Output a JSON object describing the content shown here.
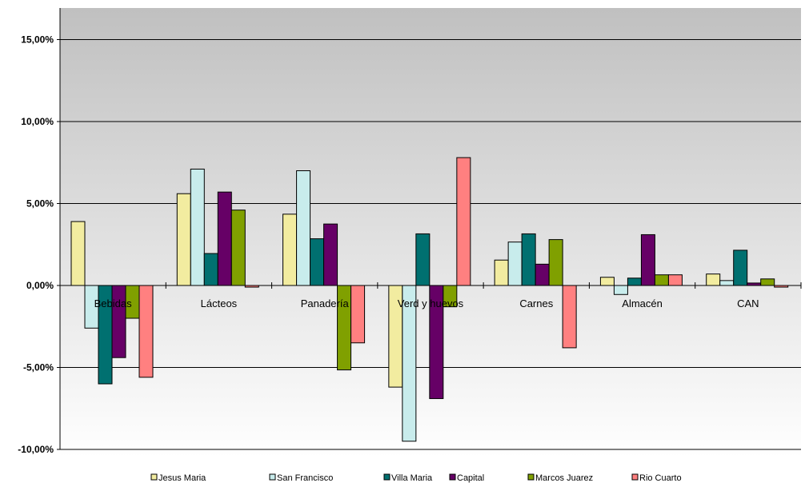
{
  "chart_data": {
    "type": "bar",
    "title": "",
    "xlabel": "",
    "ylabel": "",
    "ylim": [
      -10,
      16.5
    ],
    "yticks": [
      -10,
      -5,
      0,
      5,
      10,
      15
    ],
    "ytick_labels": [
      "-10,00%",
      "-5,00%",
      "0,00%",
      "5,00%",
      "10,00%",
      "15,00%"
    ],
    "grid": true,
    "legend_position": "bottom",
    "categories": [
      "Bebidas",
      "Lácteos",
      "Panadería",
      "Verd y huevos",
      "Carnes",
      "Almacén",
      "CAN"
    ],
    "series": [
      {
        "name": "Jesus Maria",
        "color": "#F2ECA0",
        "values": [
          3.9,
          5.6,
          4.35,
          -6.2,
          1.55,
          0.5,
          0.7
        ]
      },
      {
        "name": "San Francisco",
        "color": "#C8ECEC",
        "values": [
          -2.6,
          7.1,
          7.0,
          -9.5,
          2.65,
          -0.55,
          0.3
        ]
      },
      {
        "name": "Villa Maria",
        "color": "#007070",
        "values": [
          -6.0,
          1.95,
          2.85,
          3.15,
          3.15,
          0.45,
          2.15
        ]
      },
      {
        "name": "Capital",
        "color": "#660066",
        "values": [
          -4.4,
          5.7,
          3.75,
          -6.9,
          1.3,
          3.1,
          0.15
        ]
      },
      {
        "name": "Marcos Juarez",
        "color": "#80A000",
        "values": [
          -2.0,
          4.6,
          -5.15,
          -1.3,
          2.8,
          0.65,
          0.4
        ]
      },
      {
        "name": "Rio Cuarto",
        "color": "#FF8080",
        "values": [
          -5.6,
          -0.1,
          -3.5,
          7.8,
          -3.8,
          0.65,
          -0.1
        ]
      }
    ]
  }
}
